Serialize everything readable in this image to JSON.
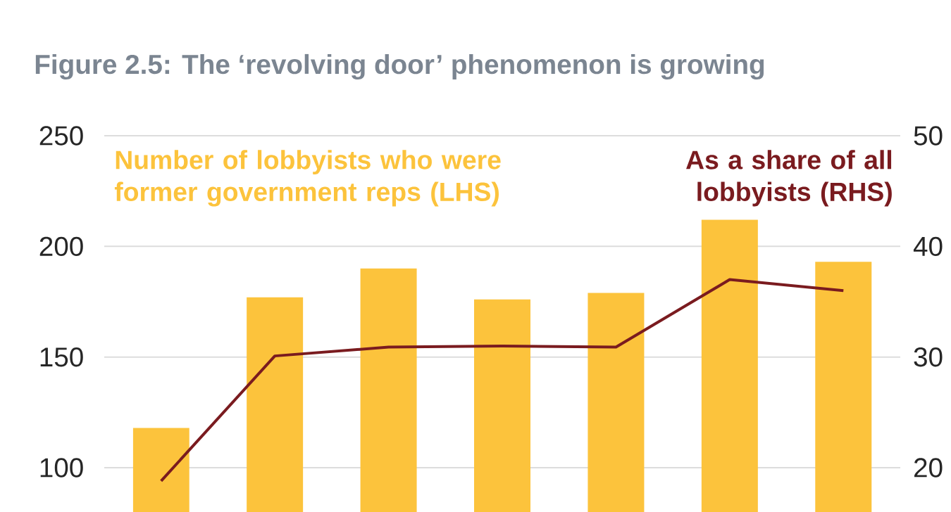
{
  "chart_data": {
    "type": "bar",
    "title": "Figure 2.5: The ‘revolving door’ phenomenon is growing",
    "categories": [
      null,
      null,
      null,
      null,
      null,
      null,
      null
    ],
    "series": [
      {
        "name": "Number of lobbyists who were former government reps (LHS)",
        "color": "#fcc33c",
        "values": [
          118,
          177,
          190,
          176,
          179,
          212,
          193
        ]
      },
      {
        "name": "As a share of all lobbyists (RHS)",
        "type": "line",
        "axis": "y2",
        "color": "#7a1b1f",
        "line_style": "solid",
        "values": [
          18.8,
          30.1,
          30.9,
          31.0,
          30.9,
          37.0,
          36.0
        ]
      }
    ],
    "ylim": [
      80,
      250
    ],
    "yticks": [
      100,
      150,
      200,
      250
    ],
    "y2lim": [
      16,
      50
    ],
    "y2ticks": [
      20,
      30,
      40,
      50
    ],
    "grid": "y",
    "marker": "none"
  }
}
